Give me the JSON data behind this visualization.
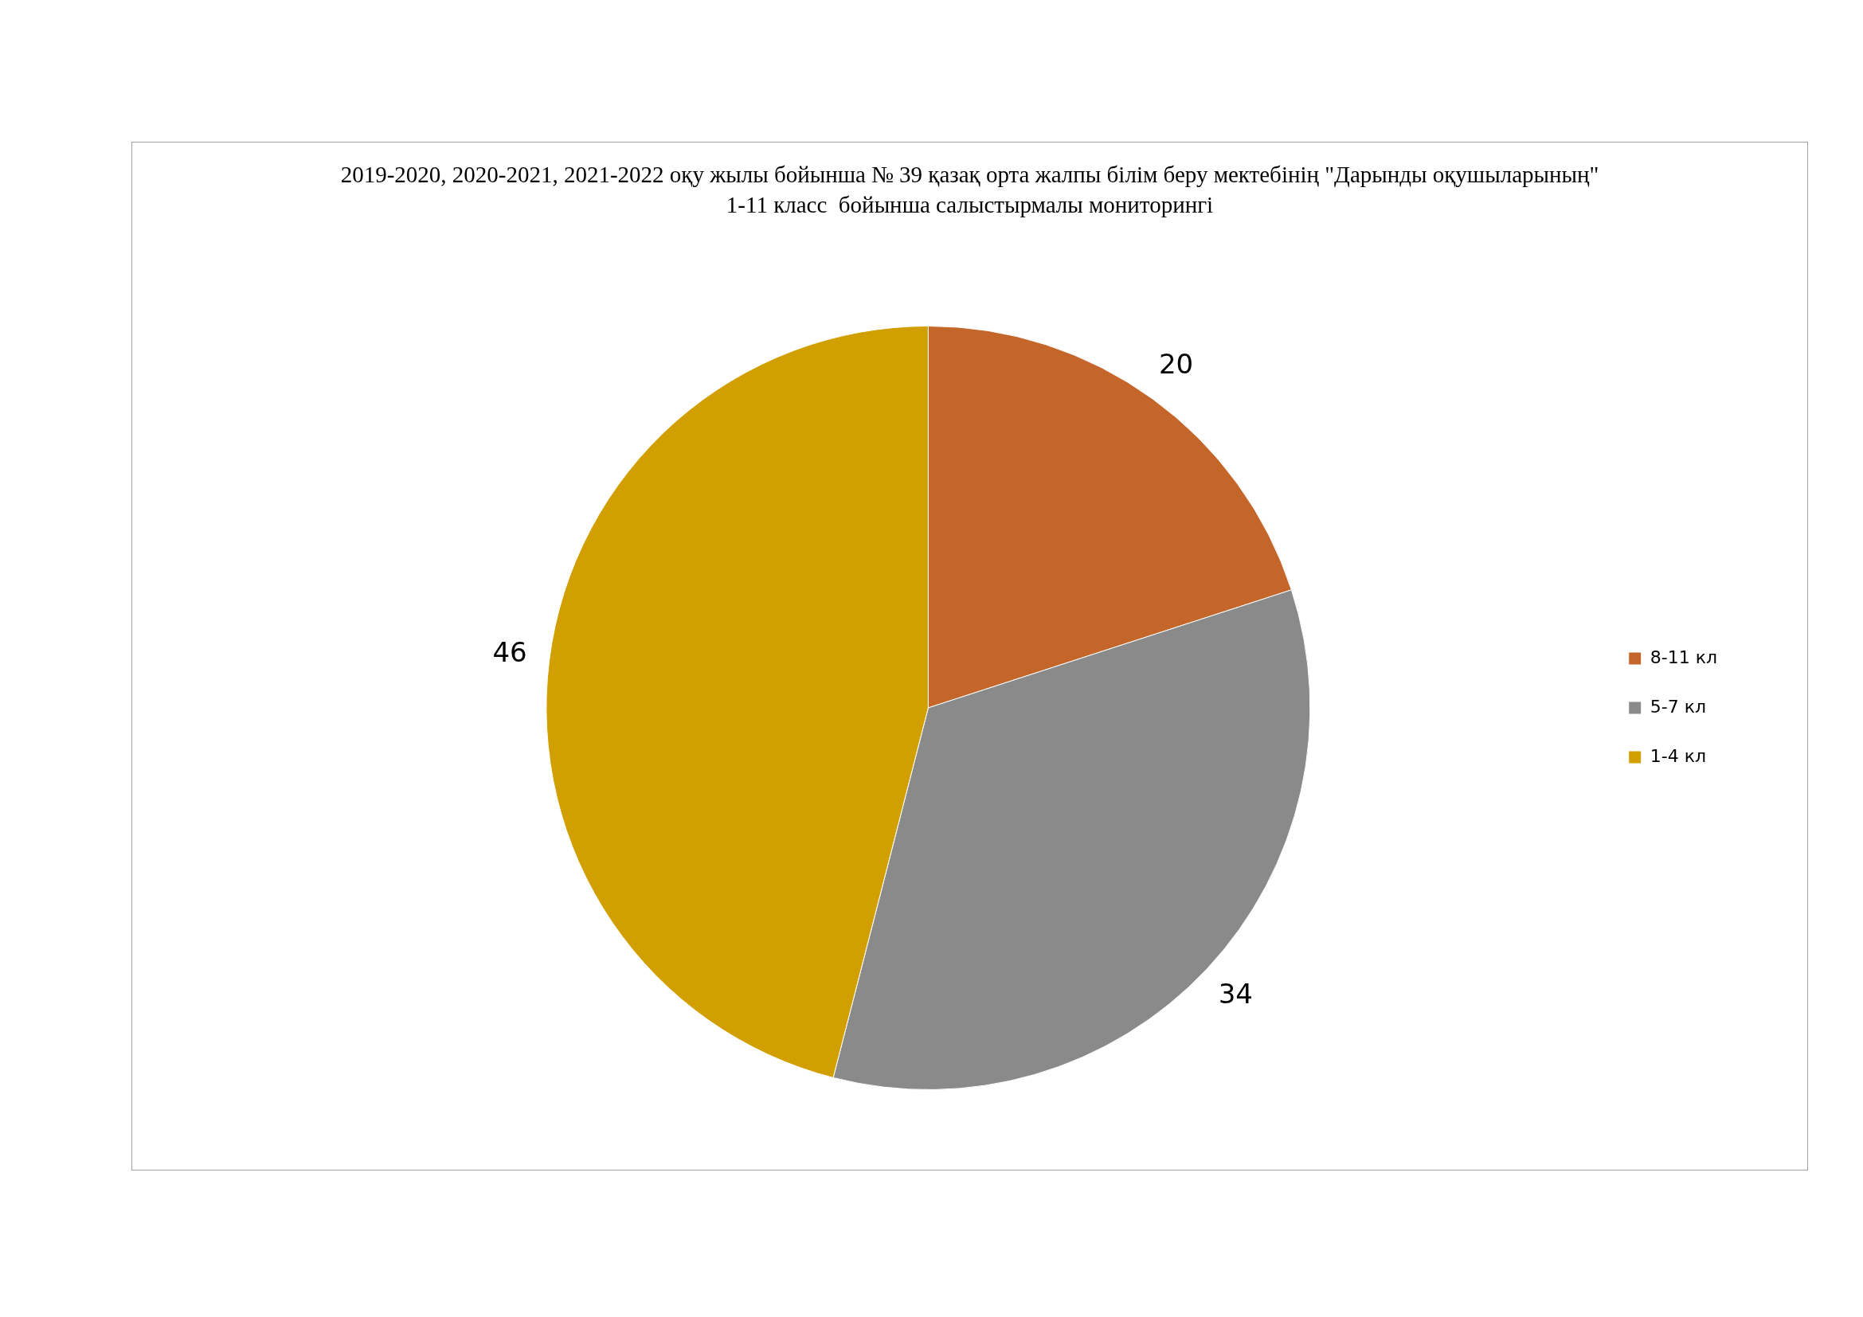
{
  "chart_data": {
    "type": "pie",
    "title": "2019-2020, 2020-2021, 2021-2022 оқу жылы бойынша № 39 қазақ орта жалпы білім беру мектебінің \"Дарынды оқушыларының\" 1-11 класс  бойынша салыстырмалы мониторингі",
    "categories": [
      "8-11 кл",
      "5-7 кл",
      "1-4 кл"
    ],
    "values": [
      20,
      34,
      46
    ],
    "colors": [
      "#c4662a",
      "#8a8a8a",
      "#d29f00"
    ],
    "data_labels": true,
    "legend": "right"
  }
}
